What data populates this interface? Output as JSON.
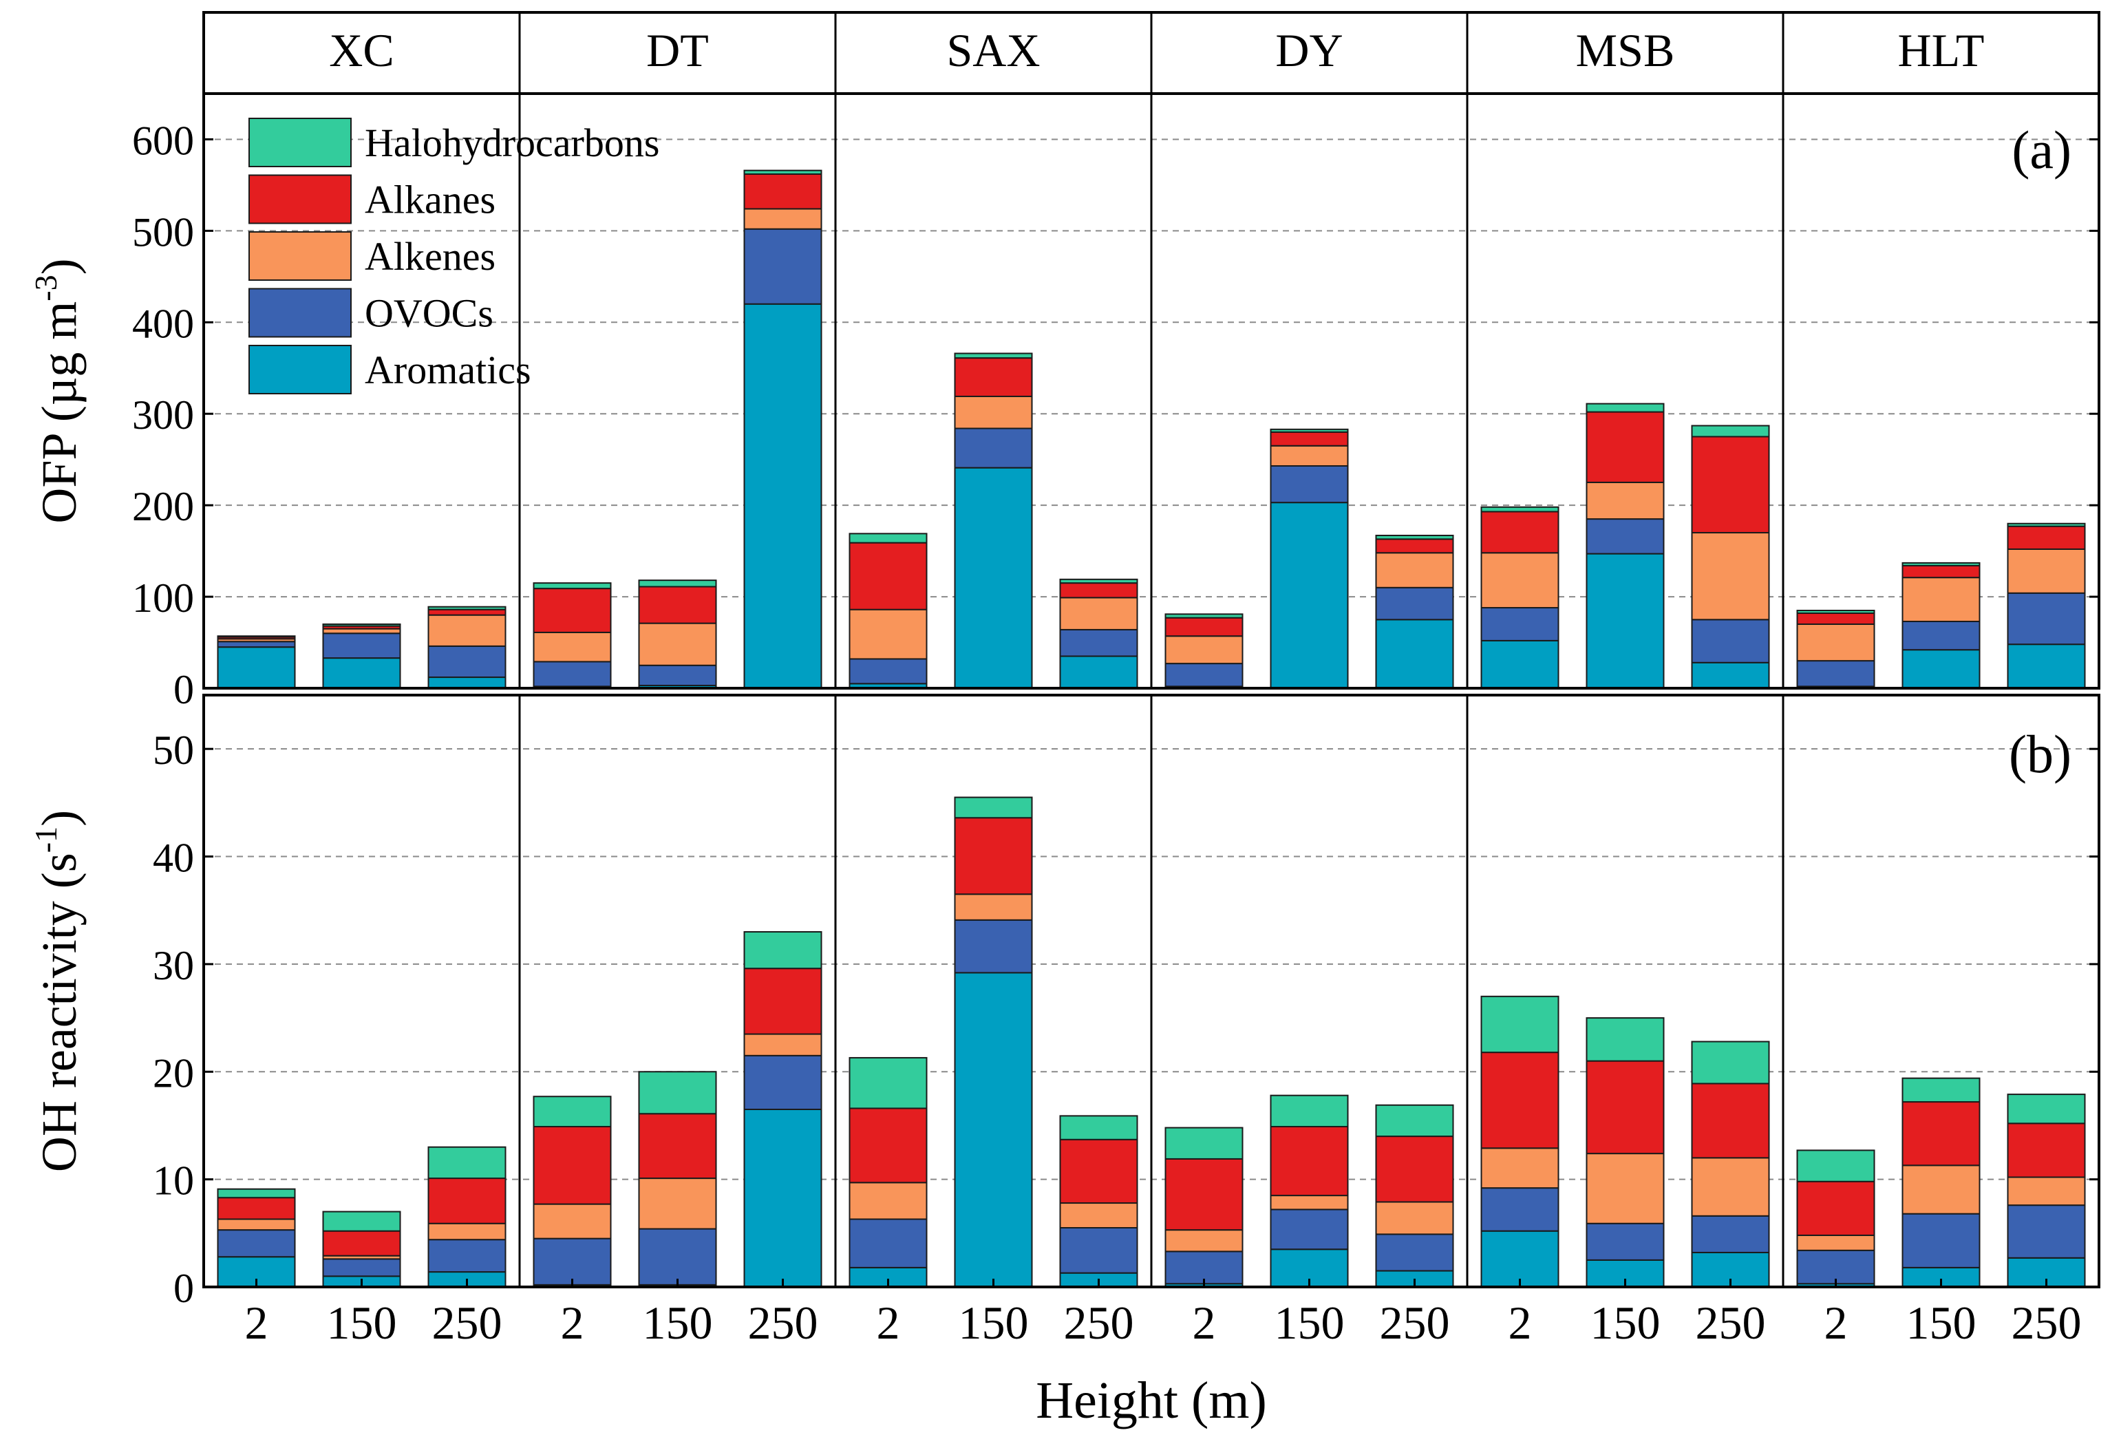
{
  "chart_data": {
    "type": "bar",
    "stacked": true,
    "sites": [
      "XC",
      "DT",
      "SAX",
      "DY",
      "MSB",
      "HLT"
    ],
    "heights": [
      "2",
      "150",
      "250"
    ],
    "xlabel": "Height (m)",
    "legend": {
      "placement": "top-left of panel (a)",
      "entries": [
        "Halohydrocarbons",
        "Alkanes",
        "Alkenes",
        "OVOCs",
        "Aromatics"
      ]
    },
    "colors": {
      "Aromatics": "#009fc2",
      "OVOCs": "#3a62b1",
      "Alkenes": "#f9955a",
      "Alkanes": "#e41e20",
      "Halohydrocarbons": "#33cc9c"
    },
    "stack_order_bottom_to_top": [
      "Aromatics",
      "OVOCs",
      "Alkenes",
      "Alkanes",
      "Halohydrocarbons"
    ],
    "panels": [
      {
        "label": "(a)",
        "ylabel_main": "OFP (µg m",
        "ylabel_sup": "-3",
        "ylabel_close": ")",
        "ylim": [
          0,
          650
        ],
        "yticks": [
          "0",
          "100",
          "200",
          "300",
          "400",
          "500",
          "600"
        ],
        "series": [
          {
            "name": "Aromatics",
            "values": [
              45,
              33,
              12,
              2,
              3,
              420,
              5,
              241,
              35,
              2,
              203,
              75,
              52,
              147,
              28,
              2,
              42,
              48
            ]
          },
          {
            "name": "OVOCs",
            "values": [
              6,
              27,
              34,
              27,
              22,
              82,
              27,
              43,
              29,
              25,
              40,
              35,
              36,
              38,
              47,
              28,
              31,
              56
            ]
          },
          {
            "name": "Alkenes",
            "values": [
              3,
              5,
              34,
              32,
              46,
              22,
              54,
              35,
              35,
              30,
              22,
              38,
              60,
              40,
              95,
              40,
              48,
              48
            ]
          },
          {
            "name": "Alkanes",
            "values": [
              2,
              3,
              6,
              48,
              40,
              38,
              73,
              42,
              16,
              20,
              15,
              15,
              45,
              77,
              105,
              12,
              13,
              25
            ]
          },
          {
            "name": "Halohydrocarbons",
            "values": [
              1,
              2,
              3,
              6,
              7,
              4,
              10,
              5,
              4,
              4,
              3,
              4,
              5,
              9,
              12,
              3,
              3,
              3
            ]
          }
        ]
      },
      {
        "label": "(b)",
        "ylabel_main": "OH reactivity (s",
        "ylabel_sup": "-1",
        "ylabel_close": ")",
        "ylim": [
          0,
          55
        ],
        "yticks": [
          "0",
          "10",
          "20",
          "30",
          "40",
          "50"
        ],
        "series": [
          {
            "name": "Aromatics",
            "values": [
              2.8,
              1.0,
              1.4,
              0.2,
              0.2,
              16.5,
              1.8,
              29.2,
              1.3,
              0.3,
              3.5,
              1.5,
              5.2,
              2.5,
              3.2,
              0.3,
              1.8,
              2.7
            ]
          },
          {
            "name": "OVOCs",
            "values": [
              2.5,
              1.6,
              3.0,
              4.3,
              5.2,
              5.0,
              4.5,
              4.9,
              4.2,
              3.0,
              3.7,
              3.4,
              4.0,
              3.4,
              3.4,
              3.1,
              5.0,
              4.9
            ]
          },
          {
            "name": "Alkenes",
            "values": [
              1.0,
              0.3,
              1.5,
              3.2,
              4.7,
              2.0,
              3.4,
              2.4,
              2.3,
              2.0,
              1.3,
              3.0,
              3.7,
              6.5,
              5.4,
              1.4,
              4.5,
              2.6
            ]
          },
          {
            "name": "Alkanes",
            "values": [
              2.0,
              2.3,
              4.2,
              7.2,
              6.0,
              6.1,
              6.9,
              7.1,
              5.9,
              6.6,
              6.4,
              6.1,
              8.9,
              8.6,
              6.9,
              5.0,
              5.9,
              5.0
            ]
          },
          {
            "name": "Halohydrocarbons",
            "values": [
              0.8,
              1.8,
              2.9,
              2.8,
              3.9,
              3.4,
              4.7,
              1.9,
              2.2,
              2.9,
              2.9,
              2.9,
              5.2,
              4.0,
              3.9,
              2.9,
              2.2,
              2.7
            ]
          }
        ]
      }
    ]
  }
}
